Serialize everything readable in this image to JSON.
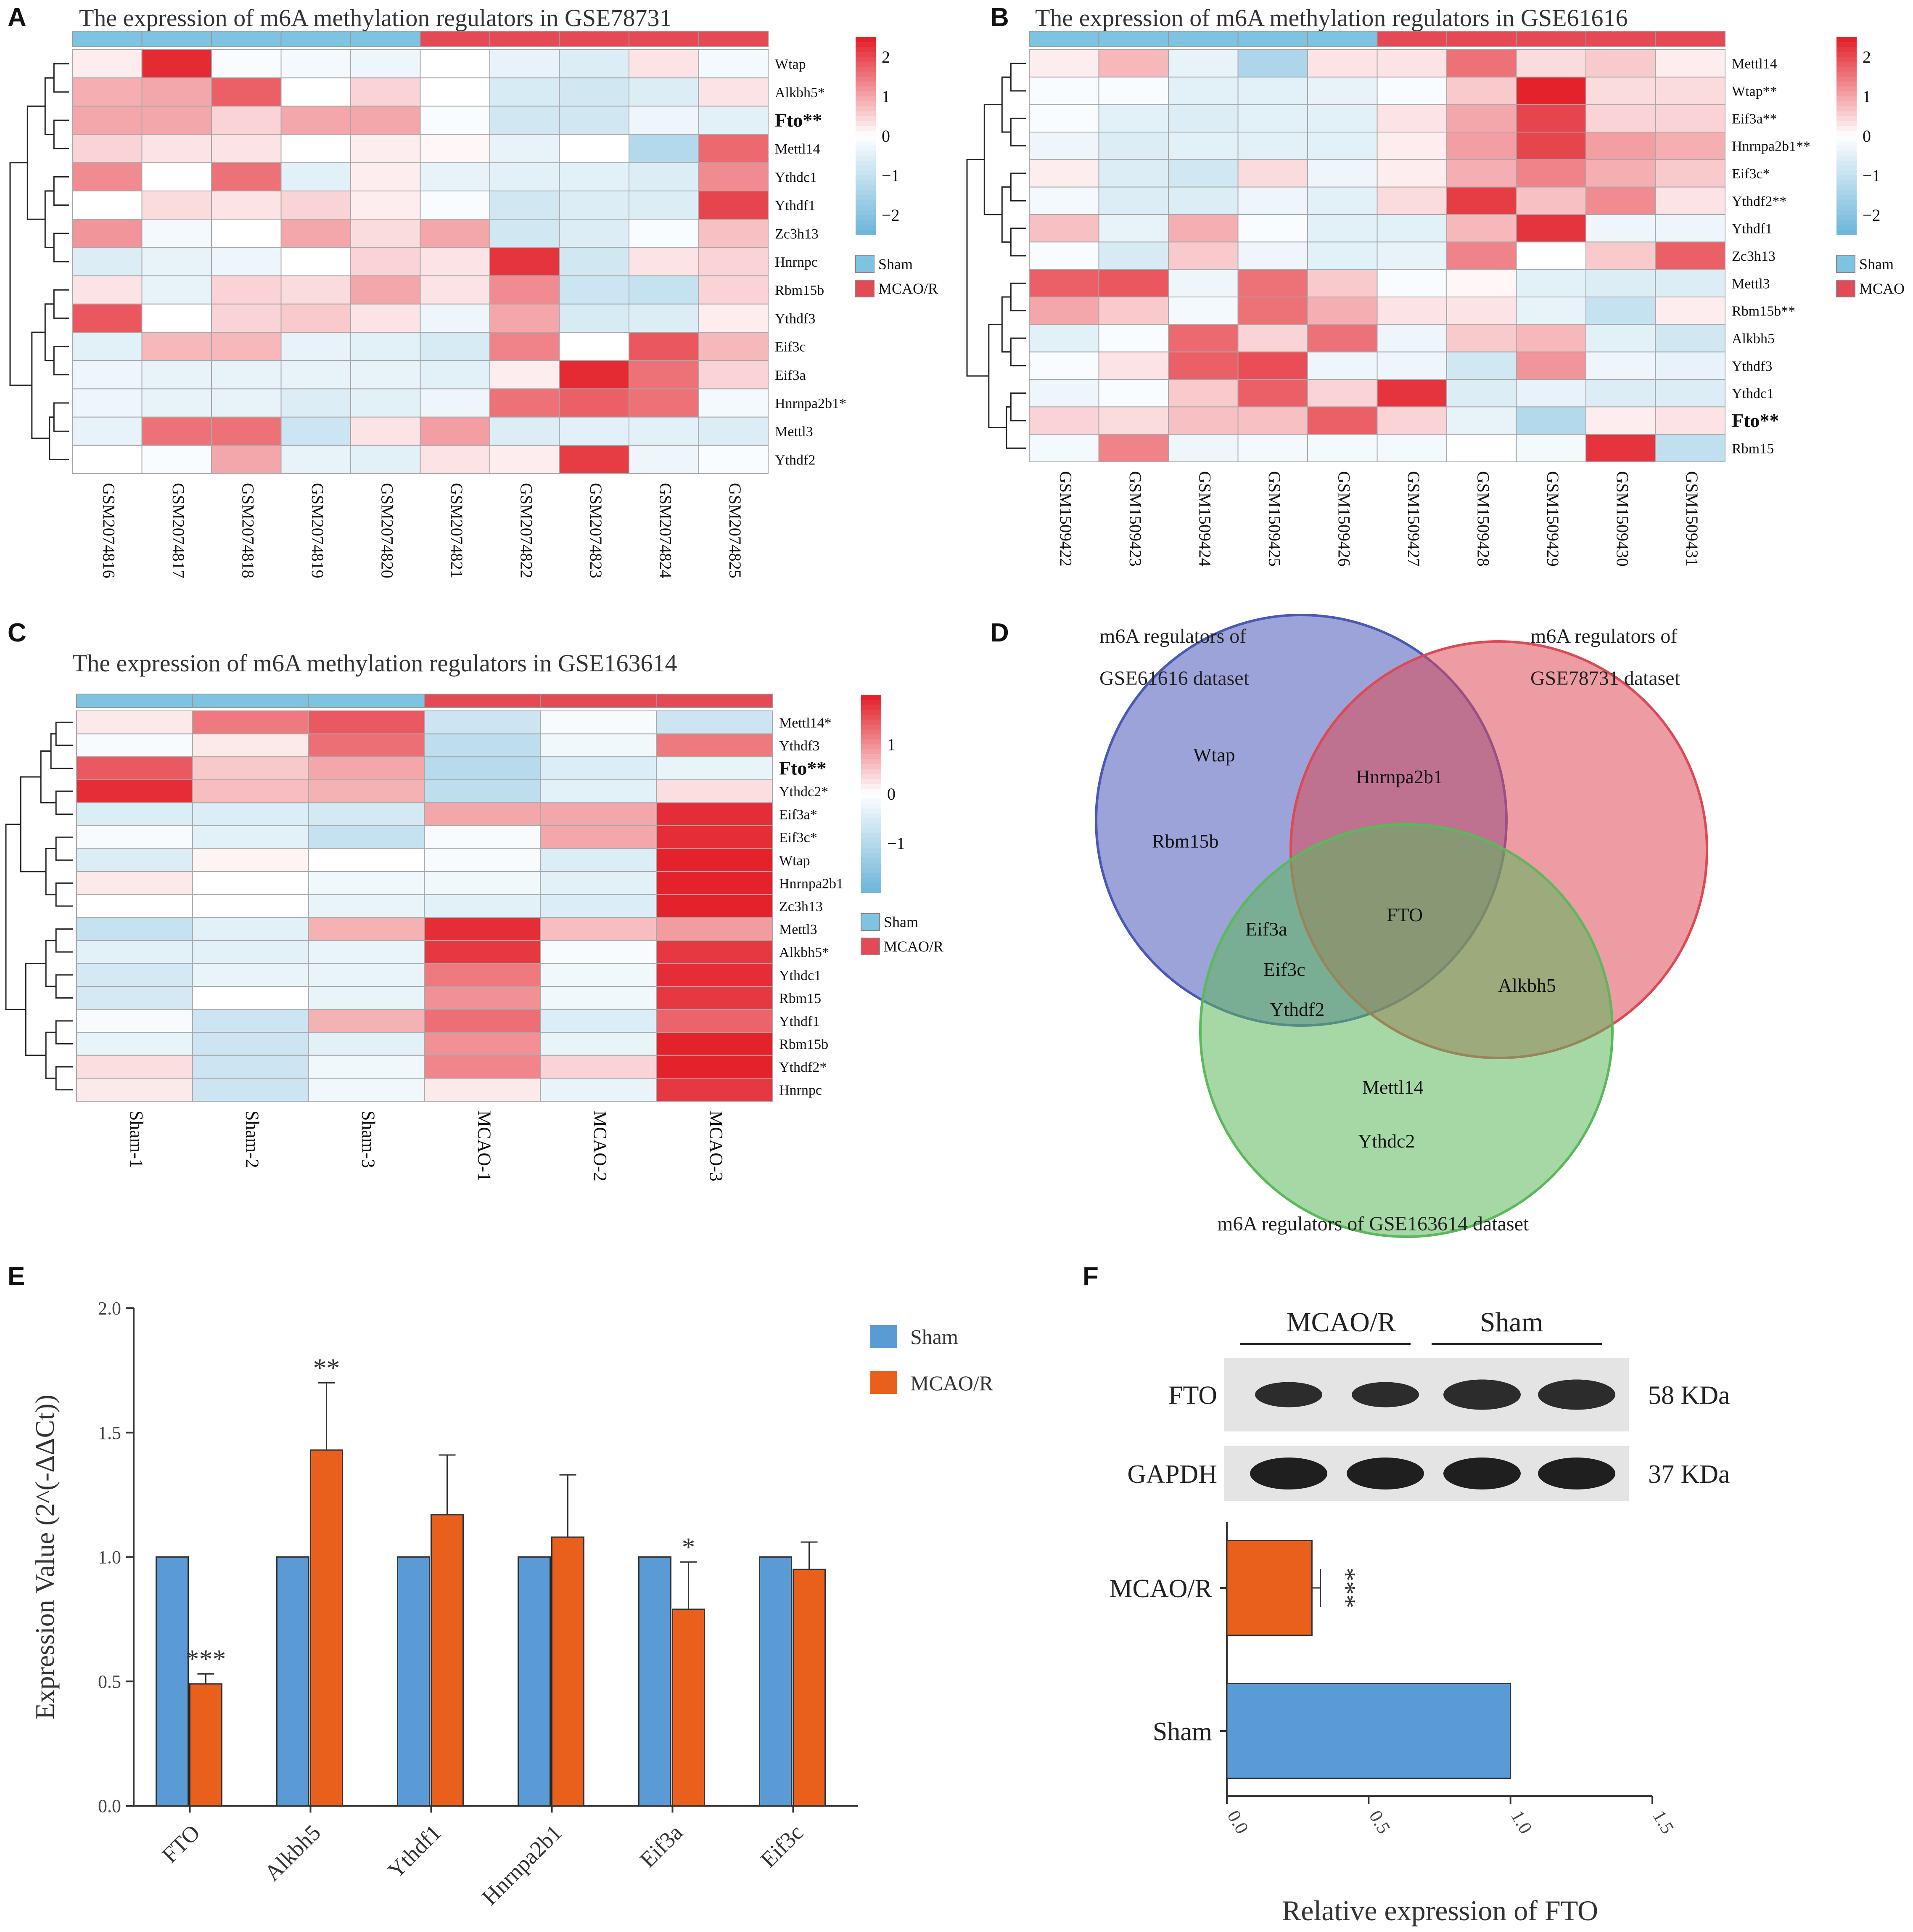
{
  "panel_labels": [
    "A",
    "B",
    "C",
    "D",
    "E",
    "F"
  ],
  "legend_colors": {
    "sham": "#7ec4e0",
    "mcao": "#e34a55"
  },
  "chart_data": [
    {
      "panel": "A",
      "type": "heatmap",
      "title": "The expression of m6A methylation regulators in GSE78731",
      "columns": [
        "GSM2074816",
        "GSM2074817",
        "GSM2074818",
        "GSM2074819",
        "GSM2074820",
        "GSM2074821",
        "GSM2074822",
        "GSM2074823",
        "GSM2074824",
        "GSM2074825"
      ],
      "group_annotation": [
        "Sham",
        "Sham",
        "Sham",
        "Sham",
        "Sham",
        "MCAO/R",
        "MCAO/R",
        "MCAO/R",
        "MCAO/R",
        "MCAO/R"
      ],
      "rows": [
        "Wtap",
        "Alkbh5*",
        "Fto**",
        "Mettl14",
        "Ythdc1",
        "Ythdf1",
        "Zc3h13",
        "Hnrnpc",
        "Rbm15b",
        "Ythdf3",
        "Eif3c",
        "Eif3a",
        "Hnrnpa2b1*",
        "Mettl3",
        "Ythdf2"
      ],
      "bold_rows": [
        "Fto**"
      ],
      "values": [
        [
          0.2,
          2.4,
          -0.1,
          -0.2,
          -0.3,
          0.0,
          -0.4,
          -0.6,
          0.3,
          -0.2
        ],
        [
          0.9,
          1.0,
          1.8,
          0.0,
          0.5,
          0.0,
          -0.7,
          -0.8,
          -0.6,
          0.3
        ],
        [
          1.0,
          1.0,
          0.5,
          1.0,
          1.0,
          -0.1,
          -0.8,
          -0.8,
          -0.3,
          -0.5
        ],
        [
          0.5,
          0.3,
          0.3,
          0.0,
          0.2,
          0.1,
          -0.4,
          0.0,
          -1.3,
          1.7
        ],
        [
          1.3,
          0.0,
          1.6,
          -0.5,
          0.2,
          -0.4,
          -0.5,
          -0.5,
          -0.6,
          1.3
        ],
        [
          0.0,
          0.4,
          0.3,
          0.5,
          0.2,
          -0.1,
          -0.8,
          -0.6,
          -0.6,
          2.1
        ],
        [
          1.2,
          -0.2,
          0.0,
          1.0,
          0.4,
          1.0,
          -0.8,
          -0.6,
          -0.1,
          0.7
        ],
        [
          -0.6,
          -0.4,
          -0.3,
          0.0,
          0.5,
          0.3,
          2.3,
          -0.8,
          0.3,
          0.5
        ],
        [
          0.3,
          -0.4,
          0.5,
          0.4,
          1.0,
          0.3,
          1.3,
          -0.9,
          -1.0,
          0.5
        ],
        [
          1.9,
          0.0,
          0.5,
          0.6,
          0.3,
          -0.3,
          1.0,
          -0.7,
          -0.6,
          0.2
        ],
        [
          -0.5,
          0.8,
          0.8,
          -0.4,
          -0.5,
          -0.7,
          1.4,
          0.0,
          1.9,
          0.8
        ],
        [
          -0.3,
          -0.4,
          -0.4,
          -0.4,
          -0.4,
          -0.5,
          0.2,
          2.4,
          1.6,
          0.5
        ],
        [
          -0.3,
          -0.4,
          -0.4,
          -0.6,
          -0.5,
          -0.3,
          1.6,
          1.8,
          1.6,
          -0.2
        ],
        [
          -0.4,
          1.6,
          1.6,
          -0.9,
          0.3,
          1.1,
          -0.6,
          -0.5,
          -0.5,
          -0.6
        ],
        [
          0.0,
          -0.1,
          1.0,
          -0.4,
          -0.5,
          0.3,
          0.2,
          2.2,
          -0.3,
          -0.1
        ]
      ],
      "color_scale": {
        "min": -2.5,
        "max": 2.5,
        "ticks": [
          2,
          1,
          0,
          -1,
          -2
        ],
        "tick_labels": [
          "2",
          "1",
          "0",
          "−1",
          "−2"
        ]
      },
      "legend": [
        "Sham",
        "MCAO/R"
      ]
    },
    {
      "panel": "B",
      "type": "heatmap",
      "title": "The expression of m6A methylation regulators in GSE61616",
      "columns": [
        "GSM1509422",
        "GSM1509423",
        "GSM1509424",
        "GSM1509425",
        "GSM1509426",
        "GSM1509427",
        "GSM1509428",
        "GSM1509429",
        "GSM1509430",
        "GSM1509431"
      ],
      "group_annotation": [
        "Sham",
        "Sham",
        "Sham",
        "Sham",
        "Sham",
        "MCAO",
        "MCAO",
        "MCAO",
        "MCAO",
        "MCAO"
      ],
      "rows": [
        "Mettl14",
        "Wtap**",
        "Eif3a**",
        "Hnrnpa2b1**",
        "Eif3c*",
        "Ythdf2**",
        "Ythdf1",
        "Zc3h13",
        "Mettl3",
        "Rbm15b**",
        "Alkbh5",
        "Ythdf3",
        "Ythdc1",
        "Fto**",
        "Rbm15"
      ],
      "bold_rows": [
        "Fto**"
      ],
      "values": [
        [
          0.2,
          0.8,
          -0.4,
          -1.4,
          0.3,
          0.3,
          1.6,
          0.4,
          0.6,
          0.2
        ],
        [
          -0.1,
          -0.1,
          -0.5,
          -0.5,
          -0.4,
          -0.1,
          0.6,
          2.5,
          0.4,
          0.4
        ],
        [
          -0.1,
          -0.5,
          -0.6,
          -0.5,
          -0.5,
          0.3,
          1.0,
          2.1,
          0.5,
          0.5
        ],
        [
          -0.3,
          -0.6,
          -0.5,
          -0.5,
          -0.5,
          0.2,
          1.1,
          2.1,
          1.1,
          0.9
        ],
        [
          0.2,
          -0.6,
          -0.8,
          0.4,
          -0.3,
          0.2,
          0.9,
          1.4,
          0.9,
          0.6
        ],
        [
          -0.2,
          -0.6,
          -0.6,
          -0.3,
          -0.5,
          0.4,
          2.2,
          0.7,
          1.3,
          0.3
        ],
        [
          0.7,
          -0.4,
          0.9,
          -0.1,
          -0.5,
          -0.5,
          0.8,
          2.3,
          -0.3,
          -0.3
        ],
        [
          -0.1,
          -0.7,
          0.6,
          -0.3,
          -0.5,
          -0.4,
          1.4,
          0.0,
          0.6,
          1.8
        ],
        [
          1.8,
          1.9,
          -0.3,
          1.6,
          0.6,
          -0.1,
          0.1,
          -0.5,
          -0.6,
          -0.6
        ],
        [
          1.0,
          0.6,
          -0.2,
          1.6,
          0.9,
          0.3,
          0.3,
          -0.4,
          -1.0,
          0.2
        ],
        [
          -0.5,
          -0.1,
          1.7,
          0.5,
          1.6,
          -0.3,
          0.6,
          0.8,
          -0.5,
          -0.8
        ],
        [
          -0.1,
          0.3,
          1.8,
          2.0,
          -0.3,
          -0.3,
          -0.8,
          1.2,
          -0.3,
          -0.4
        ],
        [
          -0.3,
          -0.1,
          0.6,
          1.8,
          0.5,
          2.3,
          -0.6,
          -0.4,
          -0.6,
          -0.6
        ],
        [
          0.5,
          0.4,
          0.7,
          0.7,
          1.8,
          0.5,
          -0.4,
          -1.3,
          0.2,
          0.3
        ],
        [
          -0.2,
          1.4,
          -0.3,
          -0.2,
          -0.2,
          -0.2,
          0.0,
          -0.2,
          2.3,
          -1.1
        ]
      ],
      "color_scale": {
        "min": -2.5,
        "max": 2.5,
        "ticks": [
          2,
          1,
          0,
          -1,
          -2
        ],
        "tick_labels": [
          "2",
          "1",
          "0",
          "−1",
          "−2"
        ]
      },
      "legend": [
        "Sham",
        "MCAO"
      ]
    },
    {
      "panel": "C",
      "type": "heatmap",
      "title": "The expression of m6A methylation regulators in GSE163614",
      "columns": [
        "Sham-1",
        "Sham-2",
        "Sham-3",
        "MCAO-1",
        "MCAO-2",
        "MCAO-3"
      ],
      "group_annotation": [
        "Sham",
        "Sham",
        "Sham",
        "MCAO/R",
        "MCAO/R",
        "MCAO/R"
      ],
      "rows": [
        "Mettl14*",
        "Ythdf3",
        "Fto**",
        "Ythdc2*",
        "Eif3a*",
        "Eif3c*",
        "Wtap",
        "Hnrnpa2b1",
        "Zc3h13",
        "Mettl3",
        "Alkbh5*",
        "Ythdc1",
        "Rbm15",
        "Ythdf1",
        "Rbm15b",
        "Ythdf2*",
        "Hnrnpc"
      ],
      "bold_rows": [
        "Fto**"
      ],
      "values": [
        [
          0.2,
          1.2,
          1.5,
          -0.7,
          -0.1,
          -0.7
        ],
        [
          -0.1,
          0.2,
          1.3,
          -0.9,
          -0.2,
          1.2
        ],
        [
          1.5,
          0.5,
          0.8,
          -1.0,
          -0.5,
          -0.3
        ],
        [
          1.9,
          0.6,
          0.7,
          -0.9,
          -0.4,
          0.3
        ],
        [
          -0.5,
          -0.5,
          -0.6,
          0.8,
          0.8,
          1.9
        ],
        [
          -0.1,
          -0.4,
          -0.8,
          -0.1,
          0.8,
          1.9
        ],
        [
          -0.5,
          0.1,
          0.0,
          -0.1,
          -0.5,
          2.1
        ],
        [
          0.2,
          0.0,
          -0.2,
          -0.2,
          -0.4,
          2.2
        ],
        [
          0.0,
          0.0,
          -0.3,
          -0.4,
          -0.5,
          2.3
        ],
        [
          -0.8,
          -0.4,
          0.7,
          1.9,
          0.6,
          0.9
        ],
        [
          -0.4,
          -0.4,
          -0.3,
          1.8,
          -0.1,
          1.8
        ],
        [
          -0.6,
          -0.3,
          -0.3,
          1.2,
          -0.2,
          1.9
        ],
        [
          -0.6,
          0.0,
          -0.3,
          1.0,
          -0.2,
          1.8
        ],
        [
          -0.1,
          -0.7,
          0.7,
          1.3,
          -0.5,
          1.4
        ],
        [
          -0.3,
          -0.7,
          -0.4,
          1.0,
          -0.3,
          2.0
        ],
        [
          0.3,
          -0.7,
          -0.2,
          1.1,
          0.4,
          2.1
        ],
        [
          0.2,
          -0.7,
          -0.2,
          0.2,
          -0.3,
          1.8
        ]
      ],
      "color_scale": {
        "min": -2.0,
        "max": 2.0,
        "ticks": [
          1,
          0,
          -1
        ],
        "tick_labels": [
          "1",
          "0",
          "−1"
        ]
      },
      "legend": [
        "Sham",
        "MCAO/R"
      ]
    },
    {
      "panel": "D",
      "type": "venn",
      "sets": [
        {
          "name": "m6A regulators of GSE61616 dataset",
          "line1": "m6A regulators of",
          "line2": "GSE61616 dataset",
          "color": "#4a58b8"
        },
        {
          "name": "m6A regulators of GSE78731 dataset",
          "line1": "m6A regulators of",
          "line2": "GSE78731 dataset",
          "color": "#dc4a55"
        },
        {
          "name": "m6A regulators of GSE163614 dataset",
          "label": "m6A regulators of GSE163614 dataset",
          "color": "#5cb85c"
        }
      ],
      "regions": {
        "GSE61616_only": [
          "Wtap",
          "Rbm15b"
        ],
        "GSE61616_GSE78731": [
          "Hnrnpa2b1"
        ],
        "all_three": [
          "FTO"
        ],
        "GSE61616_GSE163614": [
          "Eif3a",
          "Eif3c",
          "Ythdf2"
        ],
        "GSE78731_GSE163614": [
          "Alkbh5"
        ],
        "GSE163614_only": [
          "Mettl14",
          "Ythdc2"
        ]
      }
    },
    {
      "panel": "E",
      "type": "bar",
      "categories": [
        "FTO",
        "Alkbh5",
        "Ythdf1",
        "Hnrnpa2b1",
        "Eif3a",
        "Eif3c"
      ],
      "series": [
        {
          "name": "Sham",
          "color": "#5b9bd5",
          "values": [
            1.0,
            1.0,
            1.0,
            1.0,
            1.0,
            1.0
          ]
        },
        {
          "name": "MCAO/R",
          "color": "#e8601c",
          "values": [
            0.49,
            1.43,
            1.17,
            1.08,
            0.79,
            0.95
          ],
          "errors": [
            0.04,
            0.27,
            0.24,
            0.25,
            0.19,
            0.11
          ]
        }
      ],
      "significance": [
        "***",
        "**",
        "",
        "",
        "*",
        ""
      ],
      "ylabel": "Expression Value (2^(-ΔΔCt))",
      "ylim": [
        0.0,
        2.0
      ],
      "yticks": [
        0.0,
        0.5,
        1.0,
        1.5,
        2.0
      ],
      "ytick_labels": [
        "0.0",
        "0.5",
        "1.0",
        "1.5",
        "2.0"
      ],
      "legend": [
        "Sham",
        "MCAO/R"
      ]
    },
    {
      "panel": "F",
      "type": "bar",
      "orientation": "horizontal",
      "blot": {
        "groups": [
          "MCAO/R",
          "Sham"
        ],
        "bands": [
          {
            "name": "FTO",
            "size": "58 KDa"
          },
          {
            "name": "GAPDH",
            "size": "37 KDa"
          }
        ]
      },
      "categories": [
        "MCAO/R",
        "Sham"
      ],
      "series": [
        {
          "name": "Relative expression of FTO",
          "values": [
            0.3,
            1.0
          ],
          "errors": [
            0.03,
            0.0
          ],
          "colors": [
            "#e8601c",
            "#5b9bd5"
          ]
        }
      ],
      "significance": [
        "***",
        ""
      ],
      "xlabel": "Relative expression of FTO",
      "xlim": [
        0.0,
        1.5
      ],
      "xticks": [
        0.0,
        0.5,
        1.0,
        1.5
      ],
      "xtick_labels": [
        "0.0",
        "0.5",
        "1.0",
        "1.5"
      ]
    }
  ]
}
